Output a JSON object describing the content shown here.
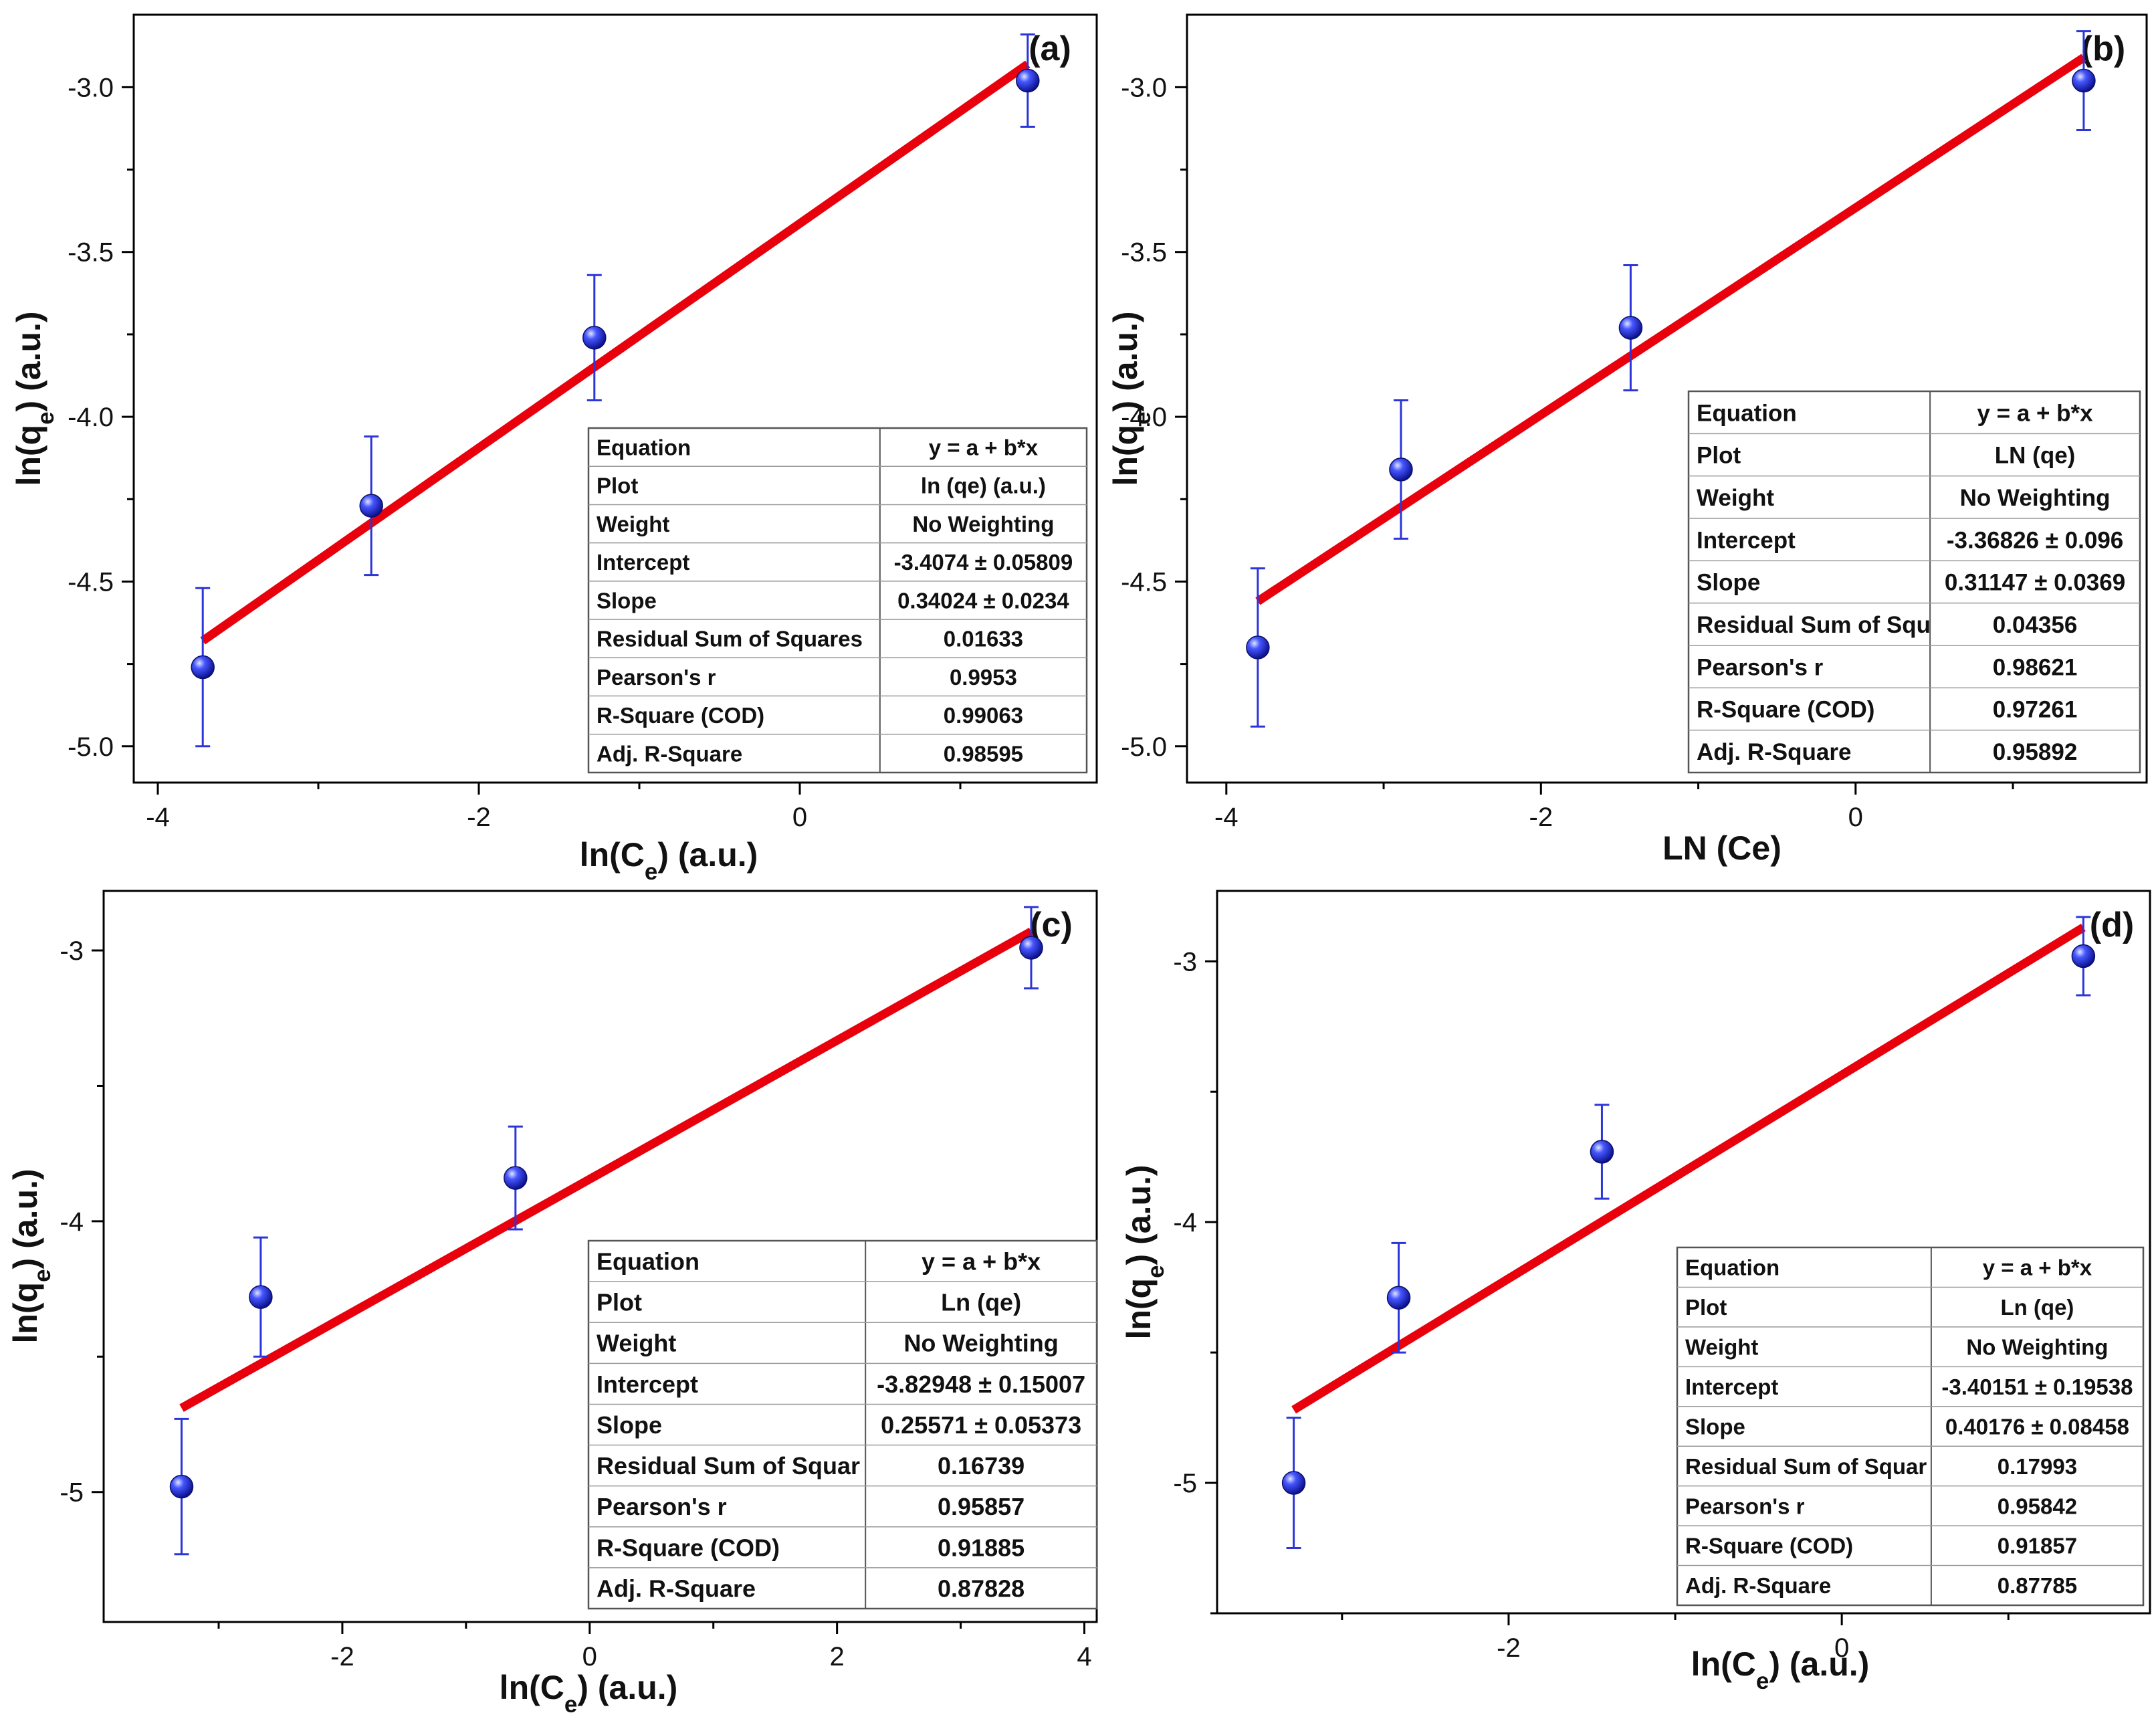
{
  "colors": {
    "fit_line": "#e8000d",
    "marker": "#1f2fe0",
    "error_bar": "#2b35d8",
    "axis": "#000000",
    "table_border": "#555555"
  },
  "chart_data": [
    {
      "type": "scatter",
      "panel_label": "(a)",
      "xlabel": "ln(C_e) (a.u.)",
      "xlabel_main": "ln(C",
      "xlabel_sub": "e",
      "xlabel_tail": ") (a.u.)",
      "ylabel": "ln(q_e) (a.u.)",
      "ylabel_main": "ln(q",
      "ylabel_sub": "e",
      "ylabel_tail": ") (a.u.)",
      "xlim": [
        -4.15,
        1.85
      ],
      "ylim": [
        -5.11,
        -2.78
      ],
      "xticks": [
        -4,
        -2,
        0
      ],
      "xtick_labels": [
        "-4",
        "-2",
        "0"
      ],
      "yticks": [
        -5.0,
        -4.5,
        -4.0,
        -3.5,
        -3.0
      ],
      "ytick_labels": [
        "-5.0",
        "-4.5",
        "-4.0",
        "-3.5",
        "-3.0"
      ],
      "points": [
        {
          "x": -3.72,
          "y": -4.76,
          "err": 0.24
        },
        {
          "x": -2.67,
          "y": -4.27,
          "err": 0.21
        },
        {
          "x": -1.28,
          "y": -3.76,
          "err": 0.19
        },
        {
          "x": 1.42,
          "y": -2.98,
          "err": 0.14
        }
      ],
      "fit": {
        "x0": -3.72,
        "y0": -4.68,
        "x1": 1.42,
        "y1": -2.93
      },
      "table": {
        "rows": [
          [
            "Equation",
            "y = a + b*x"
          ],
          [
            "Plot",
            "ln (qe) (a.u.)"
          ],
          [
            "Weight",
            "No Weighting"
          ],
          [
            "Intercept",
            "-3.4074 ± 0.05809"
          ],
          [
            "Slope",
            "0.34024 ± 0.0234"
          ],
          [
            "Residual Sum of Squares",
            "0.01633"
          ],
          [
            "Pearson's r",
            "0.9953"
          ],
          [
            "R-Square (COD)",
            "0.99063"
          ],
          [
            "Adj. R-Square",
            "0.98595"
          ]
        ]
      }
    },
    {
      "type": "scatter",
      "panel_label": "(b)",
      "xlabel": "LN (Ce)",
      "xlabel_main": "LN (Ce)",
      "xlabel_sub": "",
      "xlabel_tail": "",
      "ylabel": "ln(q_e) (a.u.)",
      "ylabel_main": "ln(q",
      "ylabel_sub": "e",
      "ylabel_tail": ") (a.u.)",
      "xlim": [
        -4.25,
        1.85
      ],
      "ylim": [
        -5.11,
        -2.78
      ],
      "xticks": [
        -4,
        -2,
        0
      ],
      "xtick_labels": [
        "-4",
        "-2",
        "0"
      ],
      "yticks": [
        -5.0,
        -4.5,
        -4.0,
        -3.5,
        -3.0
      ],
      "ytick_labels": [
        "-5.0",
        "-4.5",
        "-4.0",
        "-3.5",
        "-3.0"
      ],
      "points": [
        {
          "x": -3.8,
          "y": -4.7,
          "err": 0.24
        },
        {
          "x": -2.89,
          "y": -4.16,
          "err": 0.21
        },
        {
          "x": -1.43,
          "y": -3.73,
          "err": 0.19
        },
        {
          "x": 1.45,
          "y": -2.98,
          "err": 0.15
        }
      ],
      "fit": {
        "x0": -3.8,
        "y0": -4.56,
        "x1": 1.45,
        "y1": -2.91
      },
      "table": {
        "rows": [
          [
            "Equation",
            "y = a + b*x"
          ],
          [
            "Plot",
            "LN (qe)"
          ],
          [
            "Weight",
            "No Weighting"
          ],
          [
            "Intercept",
            "-3.36826 ± 0.096"
          ],
          [
            "Slope",
            "0.31147 ± 0.0369"
          ],
          [
            "Residual Sum of Squ",
            "0.04356"
          ],
          [
            "Pearson's r",
            "0.98621"
          ],
          [
            "R-Square (COD)",
            "0.97261"
          ],
          [
            "Adj. R-Square",
            "0.95892"
          ]
        ]
      }
    },
    {
      "type": "scatter",
      "panel_label": "(c)",
      "xlabel": "ln(C_e) (a.u.)",
      "xlabel_main": "ln(C",
      "xlabel_sub": "e",
      "xlabel_tail": ") (a.u.)",
      "ylabel": "ln(q_e) (a.u.)",
      "ylabel_main": "ln(q",
      "ylabel_sub": "e",
      "ylabel_tail": ") (a.u.)",
      "xlim": [
        -3.93,
        4.1
      ],
      "ylim": [
        -5.48,
        -2.78
      ],
      "xticks": [
        -2,
        0,
        2,
        4
      ],
      "xtick_labels": [
        "-2",
        "0",
        "2",
        "4"
      ],
      "yticks": [
        -5,
        -4,
        -3
      ],
      "ytick_labels": [
        "-5",
        "-4",
        "-3"
      ],
      "points": [
        {
          "x": -3.3,
          "y": -4.98,
          "err": 0.25
        },
        {
          "x": -2.66,
          "y": -4.28,
          "err": 0.22
        },
        {
          "x": -0.6,
          "y": -3.84,
          "err": 0.19
        },
        {
          "x": 3.57,
          "y": -2.99,
          "err": 0.15
        }
      ],
      "fit": {
        "x0": -3.3,
        "y0": -4.69,
        "x1": 3.57,
        "y1": -2.93
      },
      "table": {
        "rows": [
          [
            "Equation",
            "y = a + b*x"
          ],
          [
            "Plot",
            "Ln (qe)"
          ],
          [
            "Weight",
            "No Weighting"
          ],
          [
            "Intercept",
            "-3.82948 ± 0.15007"
          ],
          [
            "Slope",
            "0.25571 ± 0.05373"
          ],
          [
            "Residual Sum of Squar",
            "0.16739"
          ],
          [
            "Pearson's r",
            "0.95857"
          ],
          [
            "R-Square (COD)",
            "0.91885"
          ],
          [
            "Adj. R-Square",
            "0.87828"
          ]
        ]
      }
    },
    {
      "type": "scatter",
      "panel_label": "(d)",
      "xlabel": "ln(C_e) (a.u.)",
      "xlabel_main": "ln(C",
      "xlabel_sub": "e",
      "xlabel_tail": ") (a.u.)",
      "ylabel": "ln(q_e) (a.u.)",
      "ylabel_main": "ln(q",
      "ylabel_sub": "e",
      "ylabel_tail": ") (a.u.)",
      "xlim": [
        -3.75,
        1.85
      ],
      "ylim": [
        -5.5,
        -2.73
      ],
      "xticks": [
        -2,
        0
      ],
      "xtick_labels": [
        "-2",
        "0"
      ],
      "yticks": [
        -5,
        -4,
        -3
      ],
      "ytick_labels": [
        "-5",
        "-4",
        "-3"
      ],
      "points": [
        {
          "x": -3.29,
          "y": -5.0,
          "err": 0.25
        },
        {
          "x": -2.66,
          "y": -4.29,
          "err": 0.21
        },
        {
          "x": -1.44,
          "y": -3.73,
          "err": 0.18
        },
        {
          "x": 1.45,
          "y": -2.98,
          "err": 0.15
        }
      ],
      "fit": {
        "x0": -3.29,
        "y0": -4.72,
        "x1": 1.45,
        "y1": -2.87
      },
      "table": {
        "rows": [
          [
            "Equation",
            "y = a + b*x"
          ],
          [
            "Plot",
            "Ln (qe)"
          ],
          [
            "Weight",
            "No Weighting"
          ],
          [
            "Intercept",
            "-3.40151 ± 0.19538"
          ],
          [
            "Slope",
            "0.40176 ± 0.08458"
          ],
          [
            "Residual Sum of Squar",
            "0.17993"
          ],
          [
            "Pearson's r",
            "0.95842"
          ],
          [
            "R-Square (COD)",
            "0.91857"
          ],
          [
            "Adj. R-Square",
            "0.87785"
          ]
        ]
      }
    }
  ]
}
